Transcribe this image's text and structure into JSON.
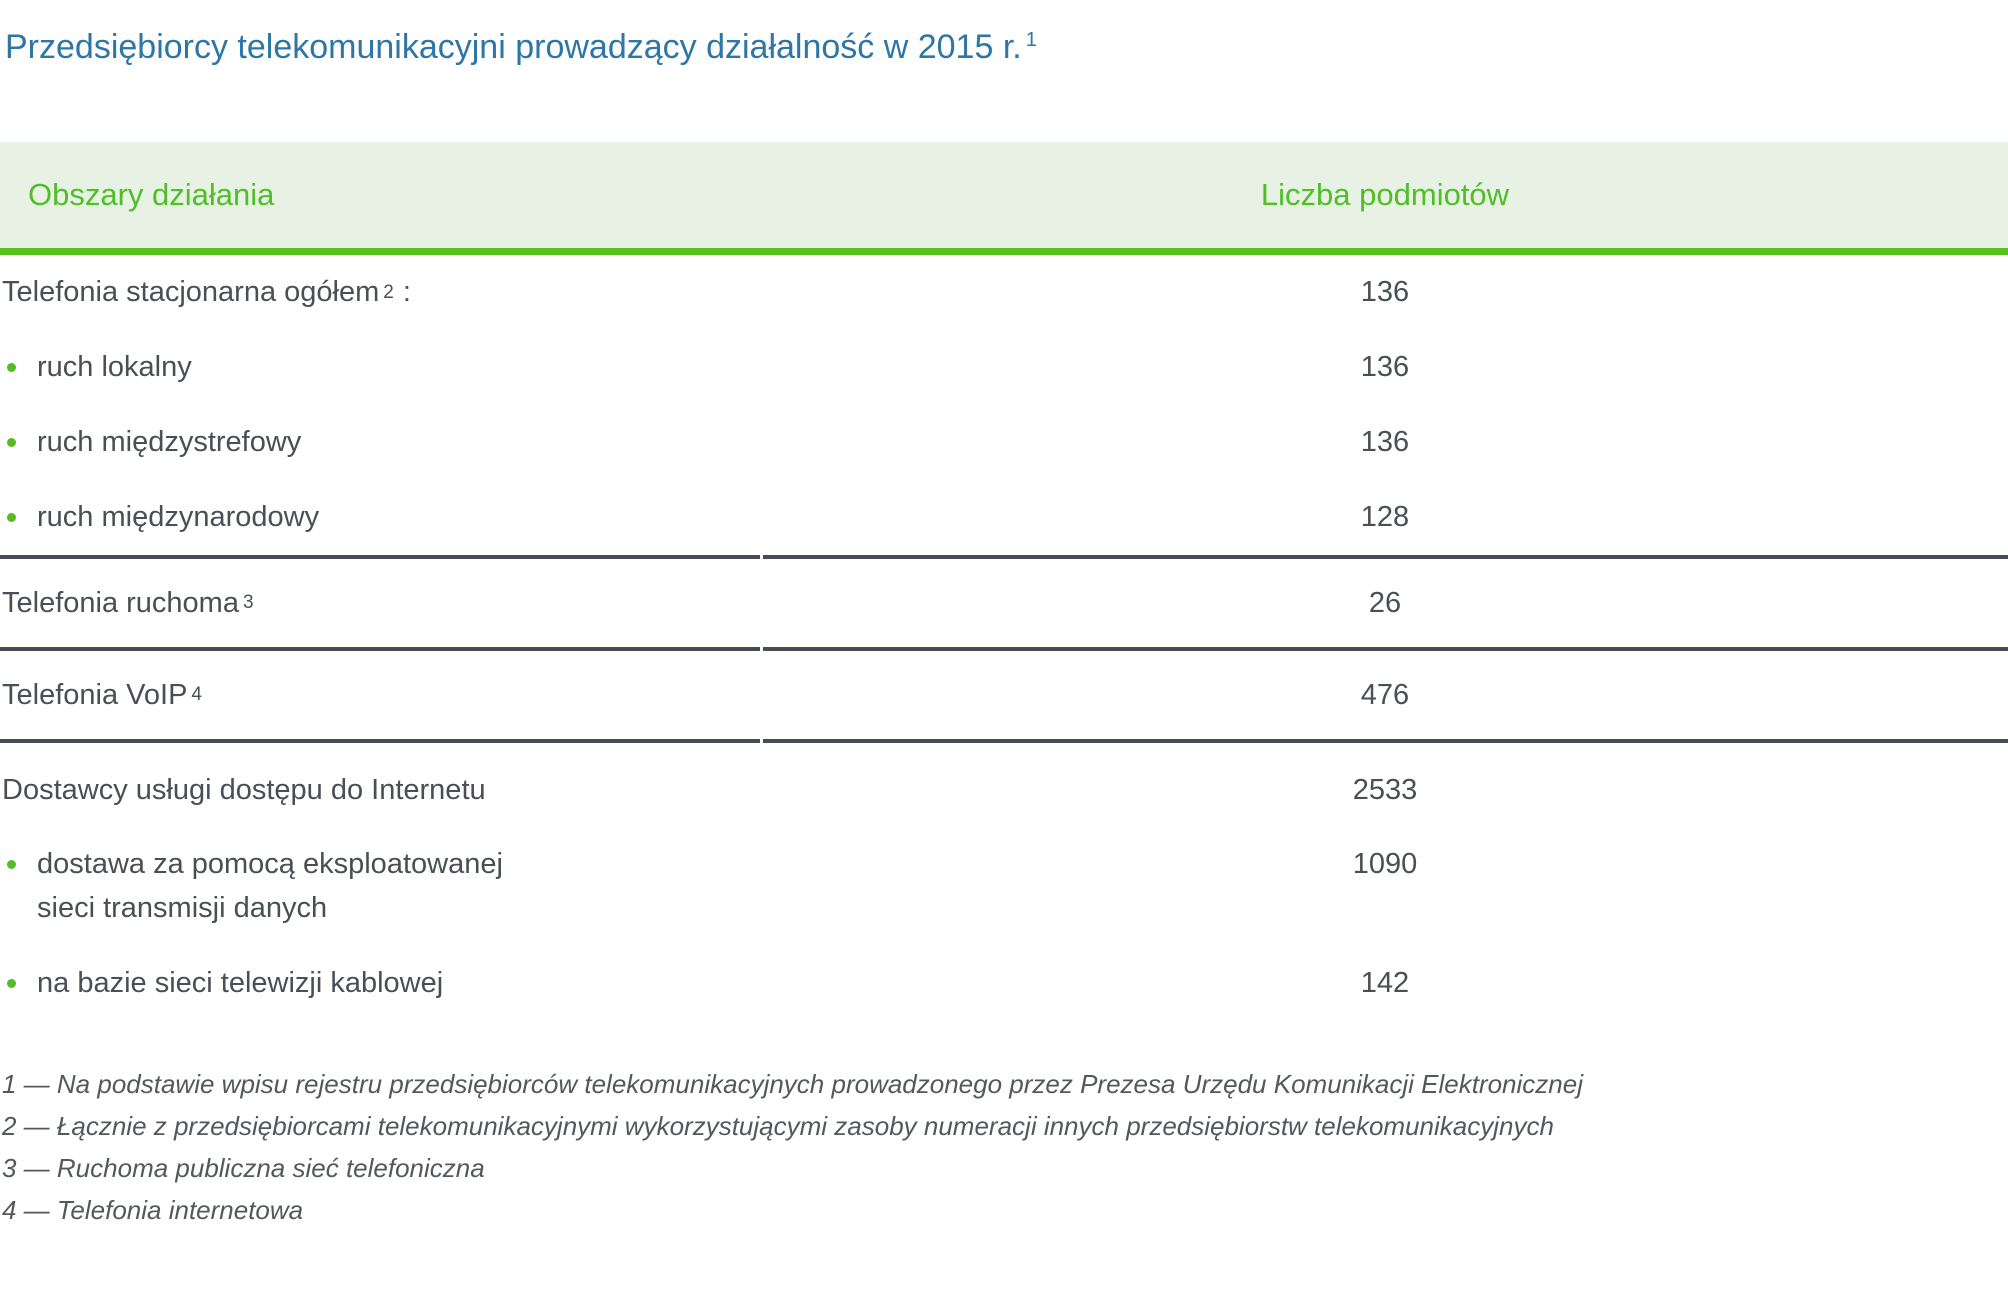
{
  "page": {
    "title": "Przedsiębiorcy telekomunikacyjni prowadzący działalność w 2015 r.",
    "title_superscript": "1"
  },
  "colors": {
    "title_blue": "#2d76a5",
    "header_text_green": "#4fbe27",
    "header_background": "#e8f2e4",
    "accent_green_border": "#56c01f",
    "body_text": "#4a4f55",
    "divider_dark": "#474d55",
    "bullet_green": "#56bb25",
    "footnote_gray": "#54585e"
  },
  "table": {
    "header": {
      "col1": "Obszary działania",
      "col2": "Liczba podmiotów"
    },
    "groups": [
      {
        "rows": [
          {
            "label": "Telefonia stacjonarna ogółem",
            "sup": "2",
            "suffix": ":",
            "value": "136"
          },
          {
            "bullet": true,
            "label": "ruch lokalny",
            "value": "136"
          },
          {
            "bullet": true,
            "label": "ruch międzystrefowy",
            "value": "136"
          },
          {
            "bullet": true,
            "label": "ruch międzynarodowy",
            "value": "128"
          }
        ]
      },
      {
        "rows": [
          {
            "label": "Telefonia ruchoma",
            "sup": "3",
            "value": "26"
          }
        ]
      },
      {
        "rows": [
          {
            "label": "Telefonia VoIP",
            "sup": "4",
            "value": "476"
          }
        ]
      },
      {
        "rows": [
          {
            "label": "Dostawcy usługi dostępu do Internetu",
            "value": "2533"
          },
          {
            "bullet": true,
            "label": "dostawa za pomocą eksploatowanej",
            "label_line2": "sieci transmisji danych",
            "value": "1090"
          },
          {
            "bullet": true,
            "label": "na bazie sieci telewizji kablowej",
            "value": "142"
          }
        ]
      }
    ]
  },
  "footnotes": [
    "1 — Na podstawie wpisu rejestru przedsiębiorców telekomunikacyjnych prowadzonego przez Prezesa Urzędu Komunikacji Elektronicznej",
    "2 — Łącznie z przedsiębiorcami telekomunikacyjnymi wykorzystującymi zasoby numeracji innych przedsiębiorstw telekomunikacyjnych",
    "3 — Ruchoma publiczna sieć telefoniczna",
    "4 — Telefonia internetowa"
  ]
}
